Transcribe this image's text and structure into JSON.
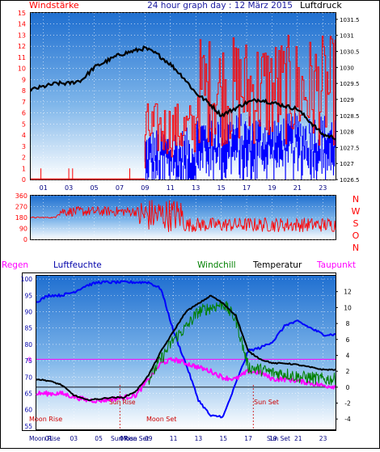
{
  "header": {
    "left": "Windstärke",
    "center": "24 hour graph day : 12 März 2015",
    "right": "Luftdruck"
  },
  "colors": {
    "wind": "#ff0000",
    "gust_dir_blue": "#0000ff",
    "pressure": "#000000",
    "humidity": "#0000ff",
    "windchill": "#008000",
    "temperature": "#000000",
    "dewpoint": "#ff00ff",
    "rain_label": "#ff00ff",
    "axis_red": "#ff0000",
    "axis_blue": "#0000ff",
    "sky_top": "#1f78d6",
    "sky_bottom": "#ffffff"
  },
  "chart_data": [
    {
      "type": "line",
      "name": "wind-pressure",
      "x_ticks": [
        "01",
        "03",
        "05",
        "07",
        "09",
        "11",
        "13",
        "15",
        "17",
        "19",
        "21",
        "23"
      ],
      "left_axis": {
        "label": "Windstärke",
        "ticks": [
          0,
          1,
          2,
          3,
          4,
          5,
          6,
          7,
          8,
          9,
          10,
          11,
          12,
          13,
          14,
          15
        ],
        "ylim": [
          0,
          15
        ]
      },
      "right_axis": {
        "label": "Luftdruck",
        "ticks": [
          1026.5,
          1027,
          1027.5,
          1028,
          1028.5,
          1029,
          1029.5,
          1030,
          1030.5,
          1031,
          1031.5
        ],
        "ylim": [
          1026.5,
          1031.7
        ]
      },
      "pressure": {
        "x": [
          0,
          1,
          2,
          3,
          4,
          5,
          6,
          7,
          8,
          9,
          10,
          11,
          12,
          13,
          14,
          15,
          16,
          17,
          18,
          19,
          20,
          21,
          22,
          23,
          24
        ],
        "y": [
          1029.3,
          1029.4,
          1029.5,
          1029.5,
          1029.6,
          1030.0,
          1030.2,
          1030.4,
          1030.5,
          1030.6,
          1030.4,
          1030.1,
          1029.7,
          1029.2,
          1028.9,
          1028.5,
          1028.7,
          1028.9,
          1029.0,
          1028.9,
          1028.8,
          1028.7,
          1028.3,
          1027.9,
          1027.8
        ]
      }
    },
    {
      "type": "line",
      "name": "wind-direction",
      "y_ticks": [
        360,
        270,
        180,
        90,
        0
      ],
      "compass": [
        "N",
        "W",
        "S",
        "O",
        "N"
      ],
      "ylim": [
        0,
        360
      ]
    },
    {
      "type": "line",
      "name": "temperature-humidity",
      "legend": [
        "Regen",
        "Luftfeuchte",
        "Windchill",
        "Temperatur",
        "Taupunkt"
      ],
      "left_axis": {
        "ticks": [
          55,
          60,
          65,
          70,
          75,
          80,
          85,
          90,
          95,
          100
        ],
        "ylim": [
          54,
          101
        ]
      },
      "right_axis": {
        "ticks": [
          -4,
          -2,
          0,
          2,
          4,
          6,
          8,
          10,
          12
        ],
        "ylim": [
          -5.3,
          14
        ]
      },
      "zero_marker": "0",
      "annotations": [
        "Moon Rise",
        "Moon Set",
        "Sun Set"
      ],
      "bottom_labels": [
        "Moon Rise",
        "Sun Rise",
        "Moon Set",
        "Sun Set",
        "01",
        "03",
        "05",
        "07",
        "09",
        "11",
        "13",
        "15",
        "17",
        "19",
        "21",
        "23"
      ],
      "humidity": {
        "x": [
          0,
          1,
          2,
          3,
          4,
          5,
          6,
          7,
          8,
          9,
          10,
          11,
          12,
          13,
          14,
          15,
          16,
          17,
          18,
          19,
          20,
          21,
          22,
          23,
          24
        ],
        "y": [
          93,
          95,
          95,
          96,
          98,
          99,
          99,
          99,
          99,
          99,
          97,
          84,
          74,
          63,
          58,
          58,
          68,
          78,
          79,
          81,
          86,
          87,
          85,
          83,
          83
        ]
      },
      "temperature": {
        "x": [
          0,
          1,
          2,
          3,
          4,
          5,
          6,
          7,
          8,
          9,
          10,
          11,
          12,
          13,
          14,
          15,
          16,
          17,
          18,
          19,
          20,
          21,
          22,
          23,
          24
        ],
        "y": [
          1.0,
          0.8,
          0.3,
          -1.0,
          -1.6,
          -1.5,
          -1.3,
          -1.3,
          -0.5,
          1.5,
          4.5,
          7.0,
          9.5,
          10.5,
          11.5,
          10.5,
          9.0,
          4.5,
          3.5,
          3.0,
          3.0,
          2.8,
          2.5,
          2.2,
          2.2
        ]
      },
      "windchill": {
        "x": [
          9,
          10,
          11,
          12,
          13,
          14,
          15,
          16,
          17,
          18,
          19,
          20,
          21,
          22,
          23,
          24
        ],
        "y": [
          1.0,
          3.5,
          6.0,
          7.5,
          9.5,
          10.0,
          10.5,
          8.5,
          2.5,
          2.2,
          1.8,
          1.7,
          1.3,
          1.2,
          1.0,
          1.0
        ]
      },
      "dewpoint": {
        "x": [
          0,
          1,
          2,
          3,
          4,
          5,
          6,
          7,
          8,
          9,
          10,
          11,
          12,
          13,
          14,
          15,
          16,
          17,
          18,
          19,
          20,
          21,
          22,
          23,
          24
        ],
        "y": [
          -0.8,
          -0.8,
          -0.8,
          -1.2,
          -1.6,
          -1.7,
          -1.5,
          -1.3,
          -1.0,
          1.0,
          3.0,
          3.5,
          3.0,
          2.5,
          2.0,
          1.2,
          1.0,
          2.0,
          1.8,
          1.0,
          1.0,
          0.8,
          0.5,
          0.2,
          0.1
        ]
      }
    }
  ]
}
